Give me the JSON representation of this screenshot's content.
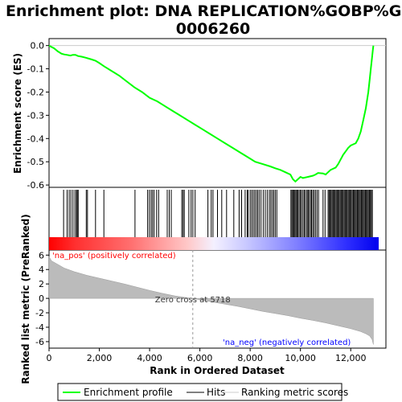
{
  "chart_data": {
    "type": "line",
    "title_line1": "Enrichment plot: DNA REPLICATION%GOBP%GO:",
    "title_line2": "0006260",
    "ylabel_top": "Enrichment score (ES)",
    "ylabel_bottom": "Ranked list metric (PreRanked)",
    "xlabel": "Rank in Ordered Dataset",
    "x_ticks": [
      "0",
      "2,000",
      "4,000",
      "6,000",
      "8,000",
      "10,000",
      "12,000"
    ],
    "es_ticks": [
      "0.0",
      "-0.1",
      "-0.2",
      "-0.3",
      "-0.4",
      "-0.5",
      "-0.6"
    ],
    "metric_ticks": [
      "6",
      "4",
      "2",
      "0",
      "-2",
      "-4",
      "-6"
    ],
    "xlim": [
      0,
      13400
    ],
    "es_ylim": [
      -0.61,
      0.03
    ],
    "metric_ylim": [
      -6.9,
      6.7
    ],
    "n_genes": 12900,
    "es_curve": {
      "x": [
        0,
        200,
        350,
        500,
        600,
        700,
        850,
        950,
        1050,
        1150,
        1300,
        1450,
        1550,
        1700,
        1850,
        2000,
        2200,
        2500,
        2800,
        3100,
        3400,
        3700,
        4000,
        4300,
        4600,
        4900,
        5200,
        5500,
        5800,
        6100,
        6400,
        6700,
        7000,
        7300,
        7600,
        7900,
        8200,
        8500,
        8800,
        9000,
        9200,
        9400,
        9600,
        9700,
        9800,
        9900,
        10000,
        10100,
        10300,
        10500,
        10600,
        10700,
        10900,
        11000,
        11100,
        11200,
        11300,
        11400,
        11500,
        11600,
        11700,
        11800,
        11900,
        12000,
        12100,
        12200,
        12300,
        12400,
        12500,
        12600,
        12700,
        12750,
        12800,
        12850,
        12880,
        12900
      ],
      "y": [
        0.0,
        -0.012,
        -0.025,
        -0.035,
        -0.038,
        -0.04,
        -0.043,
        -0.04,
        -0.04,
        -0.045,
        -0.048,
        -0.052,
        -0.055,
        -0.06,
        -0.065,
        -0.075,
        -0.09,
        -0.11,
        -0.13,
        -0.155,
        -0.18,
        -0.2,
        -0.225,
        -0.24,
        -0.26,
        -0.28,
        -0.3,
        -0.32,
        -0.34,
        -0.36,
        -0.38,
        -0.4,
        -0.42,
        -0.44,
        -0.46,
        -0.48,
        -0.5,
        -0.51,
        -0.52,
        -0.528,
        -0.535,
        -0.545,
        -0.555,
        -0.575,
        -0.585,
        -0.575,
        -0.565,
        -0.57,
        -0.565,
        -0.56,
        -0.555,
        -0.548,
        -0.55,
        -0.555,
        -0.545,
        -0.535,
        -0.53,
        -0.525,
        -0.51,
        -0.49,
        -0.47,
        -0.455,
        -0.44,
        -0.43,
        -0.425,
        -0.42,
        -0.4,
        -0.37,
        -0.32,
        -0.27,
        -0.2,
        -0.15,
        -0.1,
        -0.05,
        -0.02,
        0.0
      ]
    },
    "metric_curve": {
      "x": [
        0,
        100,
        300,
        600,
        1000,
        1500,
        2000,
        2500,
        3000,
        3500,
        4000,
        4500,
        5000,
        5500,
        5718,
        6000,
        6500,
        7000,
        7500,
        8000,
        8500,
        9000,
        9500,
        10000,
        10500,
        11000,
        11500,
        12000,
        12400,
        12600,
        12750,
        12850,
        12900
      ],
      "y": [
        5.8,
        5.2,
        4.8,
        4.2,
        3.7,
        3.2,
        2.8,
        2.4,
        2.0,
        1.55,
        1.1,
        0.7,
        0.35,
        0.08,
        0.0,
        -0.2,
        -0.5,
        -0.8,
        -1.1,
        -1.45,
        -1.8,
        -2.1,
        -2.4,
        -2.75,
        -3.05,
        -3.4,
        -3.8,
        -4.2,
        -4.6,
        -4.9,
        -5.2,
        -5.7,
        -6.4
      ]
    },
    "hits": [
      580,
      720,
      800,
      870,
      950,
      1030,
      1090,
      1120,
      1160,
      1480,
      1530,
      1850,
      2180,
      3420,
      3920,
      3990,
      4060,
      4120,
      4180,
      4280,
      4360,
      4700,
      4780,
      4860,
      5280,
      5330,
      5380,
      5560,
      5650,
      5720,
      5810,
      6320,
      6450,
      6520,
      6700,
      6870,
      7060,
      7350,
      7560,
      7660,
      7800,
      7880,
      7920,
      8000,
      8060,
      8120,
      8180,
      8240,
      8300,
      8360,
      8430,
      8520,
      8600,
      8680,
      8760,
      8820,
      8880,
      8940,
      9000,
      9060,
      9620,
      9660,
      9700,
      9740,
      9780,
      9820,
      9860,
      9900,
      9950,
      10000,
      10040,
      10100,
      10150,
      10200,
      10260,
      10300,
      10340,
      10400,
      10440,
      10490,
      10540,
      10600,
      10660,
      10720,
      10900,
      10980,
      11100,
      11140,
      11180,
      11220,
      11260,
      11300,
      11340,
      11380,
      11420,
      11460,
      11500,
      11540,
      11580,
      11620,
      11660,
      11700,
      11740,
      11780,
      11820,
      11860,
      11900,
      11940,
      11980,
      12020,
      12060,
      12100,
      12140,
      12180,
      12220,
      12260,
      12300,
      12340,
      12380,
      12420,
      12460,
      12500,
      12540,
      12580,
      12620,
      12660,
      12700,
      12740,
      12780,
      12820,
      12860
    ],
    "annotations": {
      "pos_label": "'na_pos' (positively correlated)",
      "neg_label": "'na_neg' (negatively correlated)",
      "zero_cross": "Zero cross at 5718",
      "zero_cross_x": 5718
    },
    "colors": {
      "es_line": "#00ff00",
      "hit": "#000000",
      "metric_fill": "#bbbbbb",
      "pos_text": "#ff0000",
      "neg_text": "#0000ff",
      "grad_red": "#ff0000",
      "grad_white": "#ffffff",
      "grad_blue": "#0000ff"
    },
    "legend": {
      "entries": [
        "Enrichment profile",
        "Hits",
        "Ranking metric scores"
      ],
      "placement": "bottom"
    }
  }
}
